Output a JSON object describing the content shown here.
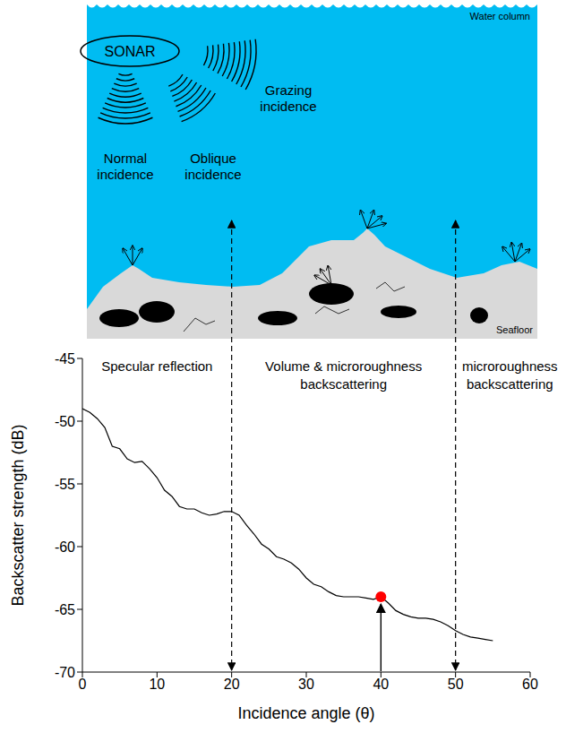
{
  "diagram": {
    "sonar": "SONAR",
    "beams": [
      "Normal incidence",
      "Oblique incidence",
      "Grazing incidence"
    ],
    "water_label": "Water column",
    "seafloor_label": "Seafloor"
  },
  "chart_data": {
    "type": "line",
    "xlabel": "Incidence angle (θ)",
    "ylabel": "Backscatter strength (dB)",
    "x": [
      0,
      1,
      2,
      3,
      4,
      5,
      6,
      7,
      8,
      9,
      10,
      11,
      12,
      13,
      14,
      15,
      16,
      17,
      18,
      19,
      20,
      21,
      22,
      23,
      24,
      25,
      26,
      27,
      28,
      29,
      30,
      31,
      32,
      33,
      34,
      35,
      36,
      37,
      38,
      39,
      40,
      41,
      42,
      43,
      44,
      45,
      46,
      47,
      48,
      49,
      50,
      51,
      52,
      53,
      54,
      55
    ],
    "values": [
      -49,
      -49.3,
      -49.8,
      -50.5,
      -52,
      -52.2,
      -53,
      -53.3,
      -53.2,
      -53.8,
      -54.5,
      -55.5,
      -56,
      -56.8,
      -57,
      -57,
      -57.3,
      -57.5,
      -57.4,
      -57.2,
      -57.2,
      -57.5,
      -58.3,
      -59,
      -59.8,
      -60.2,
      -60.8,
      -61,
      -61.3,
      -61.8,
      -62.5,
      -63,
      -63.2,
      -63.6,
      -63.9,
      -64,
      -64,
      -64,
      -64.1,
      -64.2,
      -64,
      -64.5,
      -65.1,
      -65.4,
      -65.6,
      -65.7,
      -65.7,
      -65.8,
      -66,
      -66.3,
      -66.7,
      -67,
      -67.2,
      -67.3,
      -67.4,
      -67.5
    ],
    "color": "#000000",
    "xlim": [
      0,
      60
    ],
    "ylim": [
      -70,
      -45
    ],
    "xticks": [
      0,
      10,
      20,
      30,
      40,
      50,
      60
    ],
    "yticks": [
      -70,
      -65,
      -60,
      -55,
      -50,
      -45
    ],
    "grid": false,
    "regions": [
      {
        "label": "Specular reflection",
        "from": 0,
        "to": 20
      },
      {
        "label": "Volume & microroughness backscattering",
        "from": 20,
        "to": 50
      },
      {
        "label": "microroughness backscattering",
        "from": 50,
        "to": 60
      }
    ],
    "boundaries": [
      20,
      50
    ],
    "highlight": {
      "x": 40,
      "y": -64,
      "color": "#ff0000"
    }
  }
}
